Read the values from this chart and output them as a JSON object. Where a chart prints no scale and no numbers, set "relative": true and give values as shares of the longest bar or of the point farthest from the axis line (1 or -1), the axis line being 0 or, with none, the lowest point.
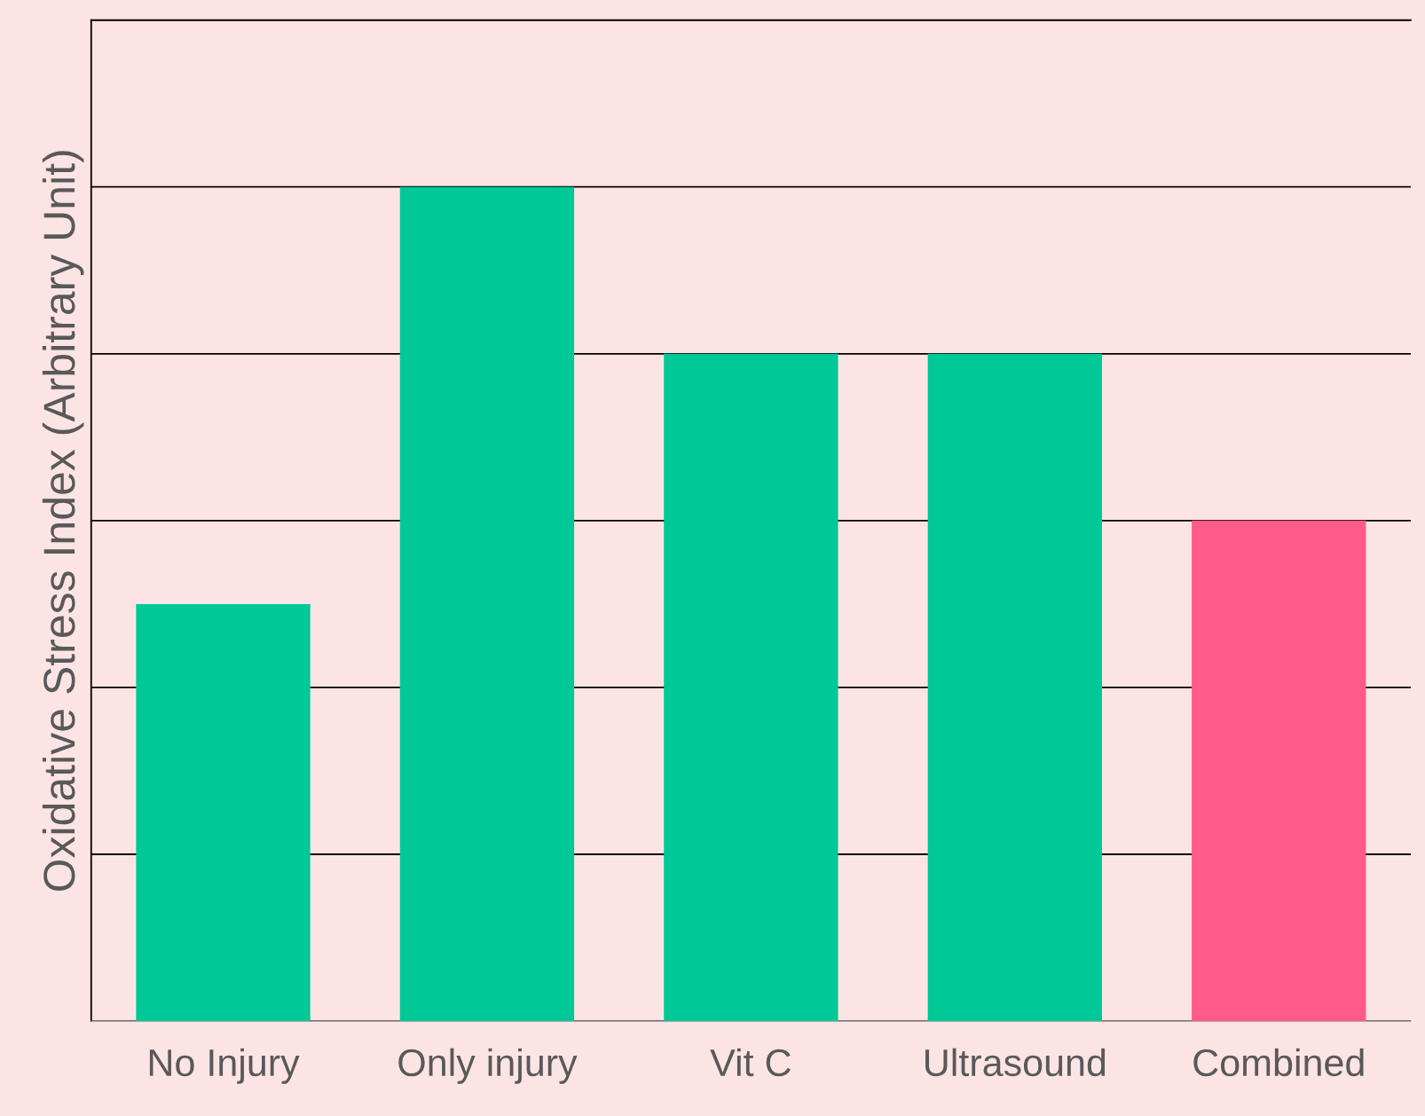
{
  "chart_data": {
    "type": "bar",
    "ylabel": "Oxidative Stress Index (Arbitrary Unit)",
    "categories": [
      "No Injury",
      "Only injury",
      "Vit C",
      "Ultrasound",
      "Combined"
    ],
    "values": [
      0.5,
      1,
      0.8,
      0.8,
      0.6
    ],
    "colors": [
      "#00c896",
      "#00c896",
      "#00c896",
      "#00c896",
      "#ff5a8a"
    ],
    "relative": true,
    "grid": "y",
    "legend": false
  }
}
